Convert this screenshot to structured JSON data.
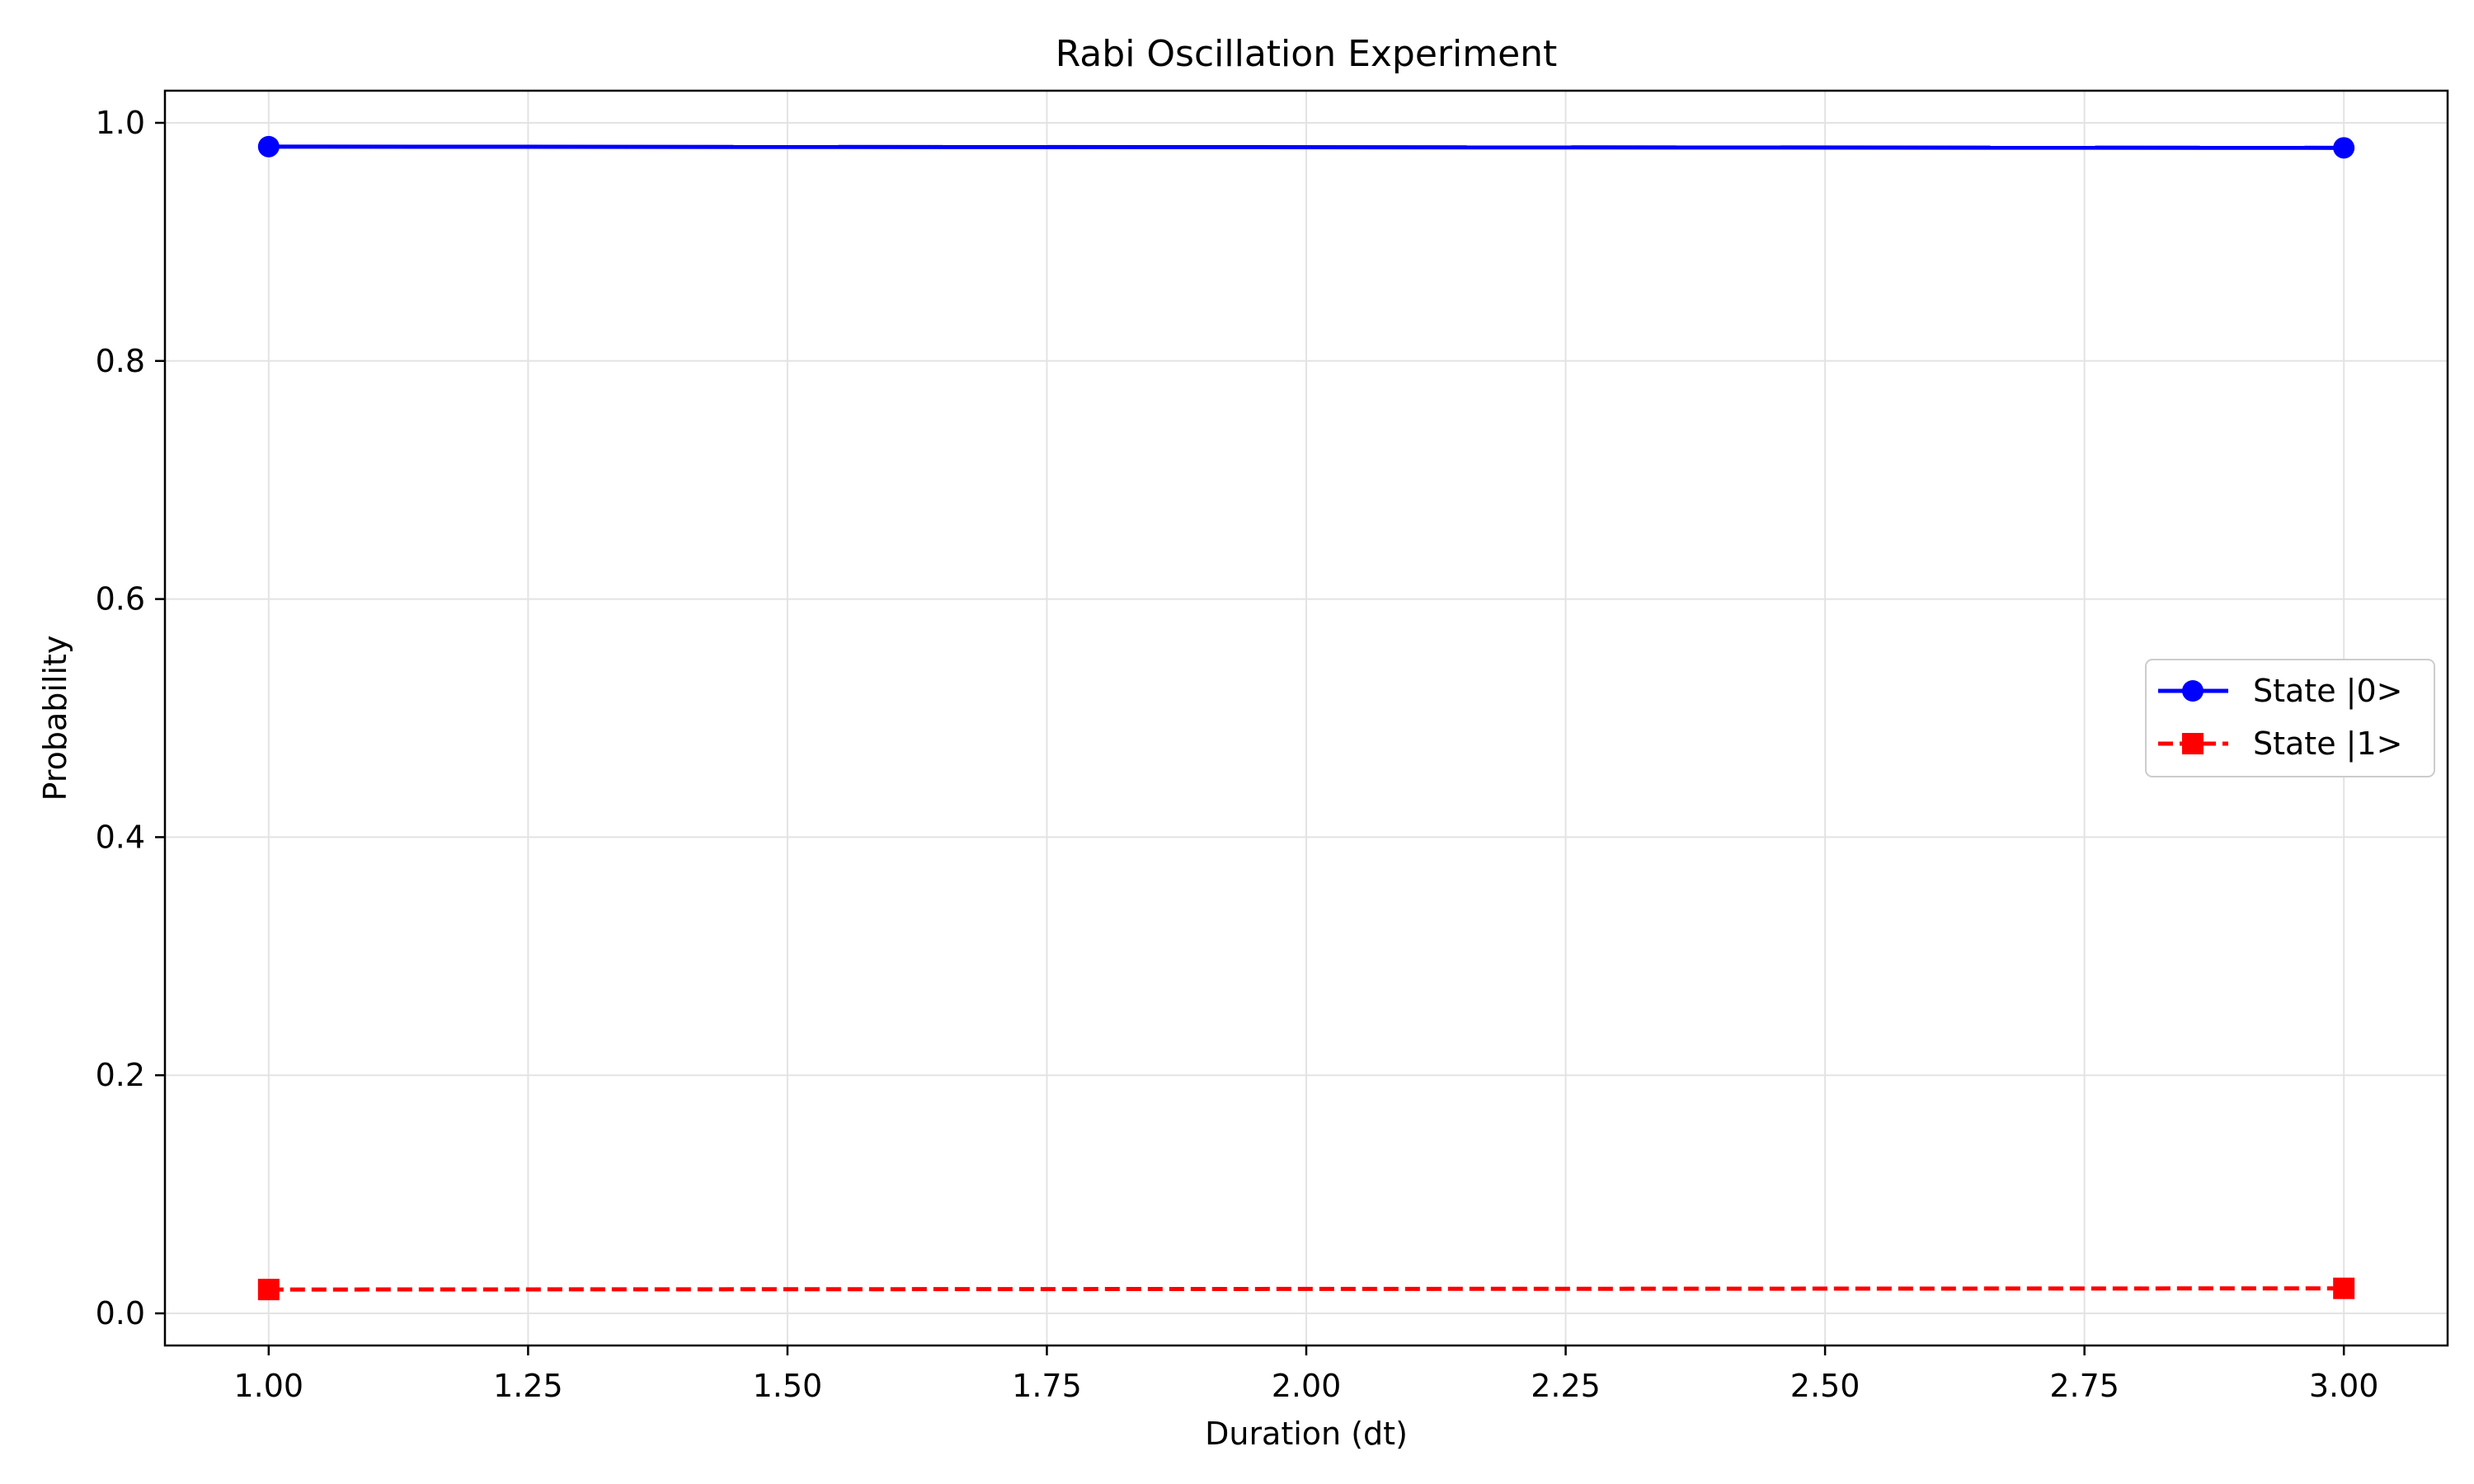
{
  "chart_data": {
    "type": "line",
    "title": "Rabi Oscillation Experiment",
    "xlabel": "Duration (dt)",
    "ylabel": "Probability",
    "xlim": [
      0.9,
      3.1
    ],
    "ylim": [
      -0.027,
      1.027
    ],
    "xticks": [
      1.0,
      1.25,
      1.5,
      1.75,
      2.0,
      2.25,
      2.5,
      2.75,
      3.0
    ],
    "xtick_labels": [
      "1.00",
      "1.25",
      "1.50",
      "1.75",
      "2.00",
      "2.25",
      "2.50",
      "2.75",
      "3.00"
    ],
    "yticks": [
      0.0,
      0.2,
      0.4,
      0.6,
      0.8,
      1.0
    ],
    "ytick_labels": [
      "0.0",
      "0.2",
      "0.4",
      "0.6",
      "0.8",
      "1.0"
    ],
    "grid": true,
    "legend_position": "center-right",
    "x": [
      1.0,
      3.0
    ],
    "series": [
      {
        "name": "State |0>",
        "values": [
          0.98,
          0.979
        ],
        "color": "#0000ff",
        "linestyle": "solid",
        "marker": "circle"
      },
      {
        "name": "State |1>",
        "values": [
          0.02,
          0.021
        ],
        "color": "#ff0000",
        "linestyle": "dashed",
        "marker": "square"
      }
    ]
  }
}
